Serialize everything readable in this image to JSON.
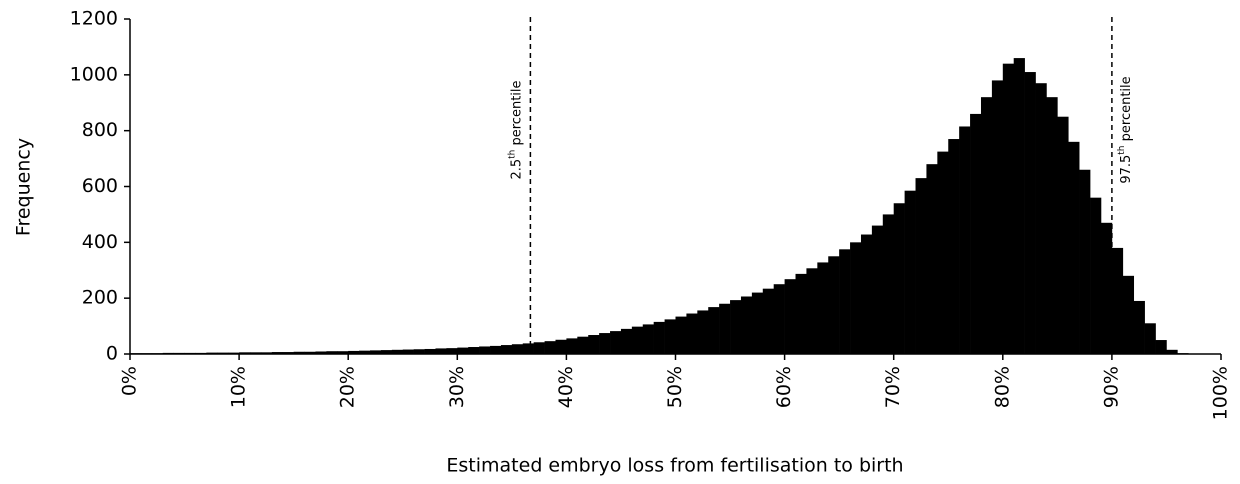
{
  "chart_data": {
    "type": "histogram",
    "x_label": "Estimated embryo loss from fertilisation to birth",
    "y_label": "Frequency",
    "color": "#000000",
    "bins": [
      0,
      1,
      2,
      3,
      4,
      5,
      6,
      7,
      8,
      9,
      10,
      11,
      12,
      13,
      14,
      15,
      16,
      17,
      18,
      19,
      20,
      21,
      22,
      23,
      24,
      25,
      26,
      27,
      28,
      29,
      30,
      31,
      32,
      33,
      34,
      35,
      36,
      37,
      38,
      39,
      40,
      41,
      42,
      43,
      44,
      45,
      46,
      47,
      48,
      49,
      50,
      51,
      52,
      53,
      54,
      55,
      56,
      57,
      58,
      59,
      60,
      61,
      62,
      63,
      64,
      65,
      66,
      67,
      68,
      69,
      70,
      71,
      72,
      73,
      74,
      75,
      76,
      77,
      78,
      79,
      80,
      81,
      82,
      83,
      84,
      85,
      86,
      87,
      88,
      89,
      90,
      91,
      92,
      93,
      94,
      95,
      96,
      97,
      98,
      99,
      100
    ],
    "counts": [
      3,
      3,
      3,
      4,
      4,
      4,
      4,
      5,
      5,
      5,
      6,
      6,
      6,
      7,
      7,
      8,
      8,
      9,
      10,
      10,
      11,
      12,
      13,
      14,
      15,
      16,
      17,
      18,
      20,
      21,
      23,
      25,
      27,
      29,
      32,
      35,
      38,
      42,
      46,
      51,
      56,
      62,
      68,
      75,
      82,
      90,
      98,
      106,
      115,
      124,
      134,
      145,
      156,
      168,
      180,
      193,
      206,
      220,
      234,
      250,
      268,
      287,
      307,
      328,
      350,
      375,
      400,
      428,
      460,
      500,
      540,
      585,
      630,
      680,
      725,
      770,
      815,
      860,
      920,
      980,
      1040,
      1060,
      1010,
      970,
      920,
      850,
      760,
      660,
      560,
      470,
      380,
      280,
      190,
      110,
      50,
      15,
      3,
      0,
      0,
      0
    ],
    "xlim": [
      0,
      100
    ],
    "ylim": [
      0,
      1200
    ],
    "xticks": [
      {
        "value": 0,
        "label": "0%"
      },
      {
        "value": 10,
        "label": "10%"
      },
      {
        "value": 20,
        "label": "20%"
      },
      {
        "value": 30,
        "label": "30%"
      },
      {
        "value": 40,
        "label": "40%"
      },
      {
        "value": 50,
        "label": "50%"
      },
      {
        "value": 60,
        "label": "60%"
      },
      {
        "value": 70,
        "label": "70%"
      },
      {
        "value": 80,
        "label": "80%"
      },
      {
        "value": 90,
        "label": "90%"
      },
      {
        "value": 100,
        "label": "100%"
      }
    ],
    "yticks": [
      0,
      200,
      400,
      600,
      800,
      1000,
      1200
    ],
    "annotations": [
      {
        "x": 36.7,
        "text": [
          "2.5",
          "th",
          " percentile"
        ],
        "side": "left"
      },
      {
        "x": 90.0,
        "text": [
          "97.5",
          "th",
          " percentile"
        ],
        "side": "right"
      }
    ]
  }
}
